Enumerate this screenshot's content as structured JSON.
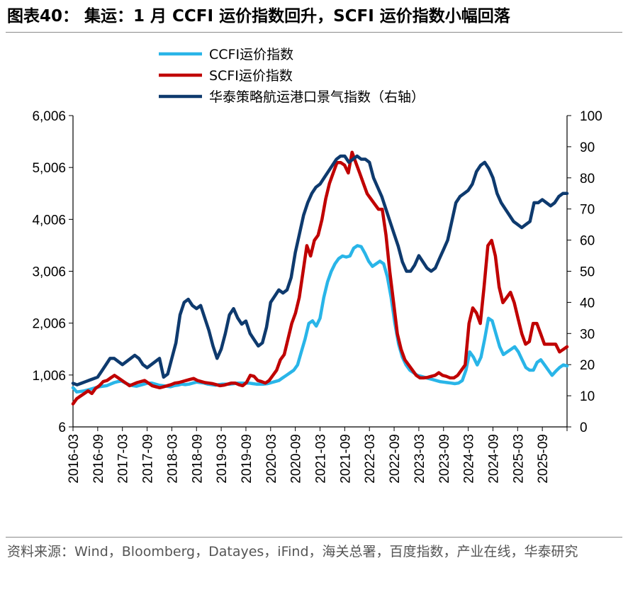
{
  "header": {
    "title": "图表40：  集运：1 月 CCFI 运价指数回升，SCFI 运价指数小幅回落"
  },
  "footer": {
    "source": "资料来源：Wind，Bloomberg，Datayes，iFind，海关总署，百度指数，产业在线，华泰研究"
  },
  "chart_data": {
    "type": "line",
    "title": "集运：1 月 CCFI 运价指数回升，SCFI 运价指数小幅回落",
    "x_start": "2016-03",
    "x_tick_labels": [
      "2016-03",
      "2016-09",
      "2017-03",
      "2017-09",
      "2018-03",
      "2018-09",
      "2019-03",
      "2019-09",
      "2020-03",
      "2020-09",
      "2021-03",
      "2021-09",
      "2022-03",
      "2022-09",
      "2023-03",
      "2023-09",
      "2024-03",
      "2024-09",
      "2025-03",
      "2025-09"
    ],
    "y_left": {
      "min": 6,
      "max": 6006,
      "ticks": [
        "6",
        "1,006",
        "2,006",
        "3,006",
        "4,006",
        "5,006",
        "6,006"
      ]
    },
    "y_right": {
      "min": 0,
      "max": 100,
      "ticks": [
        "0",
        "10",
        "20",
        "30",
        "40",
        "50",
        "60",
        "70",
        "80",
        "90",
        "100"
      ]
    },
    "legend_position": "top",
    "series": [
      {
        "name": "CCFI运价指数",
        "color": "#29B5E8",
        "axis": "left",
        "values": [
          760,
          680,
          690,
          700,
          720,
          740,
          760,
          780,
          790,
          800,
          830,
          860,
          880,
          890,
          850,
          820,
          800,
          790,
          810,
          830,
          850,
          850,
          830,
          810,
          800,
          790,
          780,
          800,
          810,
          830,
          820,
          830,
          850,
          870,
          860,
          850,
          830,
          820,
          810,
          820,
          830,
          830,
          830,
          840,
          850,
          850,
          850,
          850,
          840,
          830,
          830,
          830,
          840,
          860,
          880,
          900,
          950,
          1000,
          1050,
          1100,
          1200,
          1450,
          1700,
          2000,
          2050,
          1950,
          2100,
          2500,
          2800,
          3000,
          3150,
          3250,
          3300,
          3280,
          3300,
          3450,
          3500,
          3480,
          3350,
          3200,
          3100,
          3150,
          3200,
          3150,
          2900,
          2500,
          2000,
          1600,
          1350,
          1200,
          1100,
          1050,
          1000,
          980,
          960,
          940,
          920,
          900,
          880,
          870,
          860,
          850,
          840,
          850,
          900,
          1100,
          1450,
          1350,
          1200,
          1350,
          1700,
          2100,
          2050,
          1800,
          1550,
          1400,
          1450,
          1500,
          1550,
          1450,
          1300,
          1150,
          1100,
          1100,
          1250,
          1300,
          1200,
          1100,
          1000,
          1080,
          1150,
          1200,
          1180
        ]
      },
      {
        "name": "SCFI运价指数",
        "color": "#C00000",
        "axis": "left",
        "values": [
          450,
          550,
          600,
          650,
          700,
          650,
          750,
          800,
          880,
          900,
          950,
          1000,
          950,
          900,
          850,
          800,
          830,
          860,
          880,
          900,
          850,
          800,
          780,
          760,
          780,
          800,
          820,
          850,
          860,
          880,
          900,
          920,
          940,
          900,
          880,
          860,
          850,
          840,
          820,
          800,
          810,
          830,
          850,
          850,
          820,
          800,
          860,
          1000,
          980,
          900,
          880,
          850,
          900,
          1000,
          1100,
          1300,
          1400,
          1700,
          2000,
          2200,
          2500,
          3000,
          3500,
          3300,
          3600,
          3700,
          4000,
          4400,
          4700,
          4900,
          5100,
          5100,
          5050,
          4900,
          5300,
          5100,
          4900,
          4700,
          4500,
          4400,
          4300,
          4200,
          4200,
          3700,
          3000,
          2400,
          1800,
          1500,
          1300,
          1200,
          1100,
          1000,
          950,
          950,
          960,
          980,
          1000,
          1050,
          1000,
          980,
          950,
          950,
          1000,
          1100,
          1200,
          2000,
          2300,
          2200,
          2000,
          2700,
          3500,
          3600,
          3300,
          2700,
          2400,
          2500,
          2600,
          2400,
          2100,
          1800,
          1600,
          1650,
          2000,
          2000,
          1800,
          1600,
          1600,
          1600,
          1600,
          1450,
          1500,
          1550
        ]
      },
      {
        "name": "华泰策略航运港口景气指数（右轴）",
        "color": "#0E3A6E",
        "axis": "right",
        "values": [
          14,
          13.5,
          14,
          14.5,
          15,
          15.5,
          16,
          18,
          20,
          22,
          22,
          21,
          20,
          21,
          22,
          23,
          22,
          20,
          19,
          20,
          21,
          22,
          16,
          17,
          22,
          27,
          36,
          40,
          41,
          39,
          38,
          39,
          35,
          31,
          26,
          22,
          25,
          30,
          36,
          38,
          35,
          33,
          34,
          30,
          28,
          26,
          27,
          32,
          40,
          42,
          44,
          43,
          44,
          48,
          56,
          62,
          68,
          72,
          75,
          77,
          78,
          80,
          82,
          84,
          86,
          87,
          87,
          85,
          86,
          87,
          86,
          86,
          85,
          80,
          77,
          74,
          70,
          66,
          62,
          58,
          53,
          50,
          50,
          52,
          55,
          53,
          51,
          50,
          51,
          54,
          57,
          60,
          66,
          72,
          74,
          75,
          76,
          78,
          82,
          84,
          85,
          83,
          80,
          75,
          72,
          70,
          68,
          66,
          65,
          64,
          65,
          66,
          72,
          72,
          73,
          72,
          71,
          72,
          74,
          75,
          75
        ]
      }
    ]
  }
}
